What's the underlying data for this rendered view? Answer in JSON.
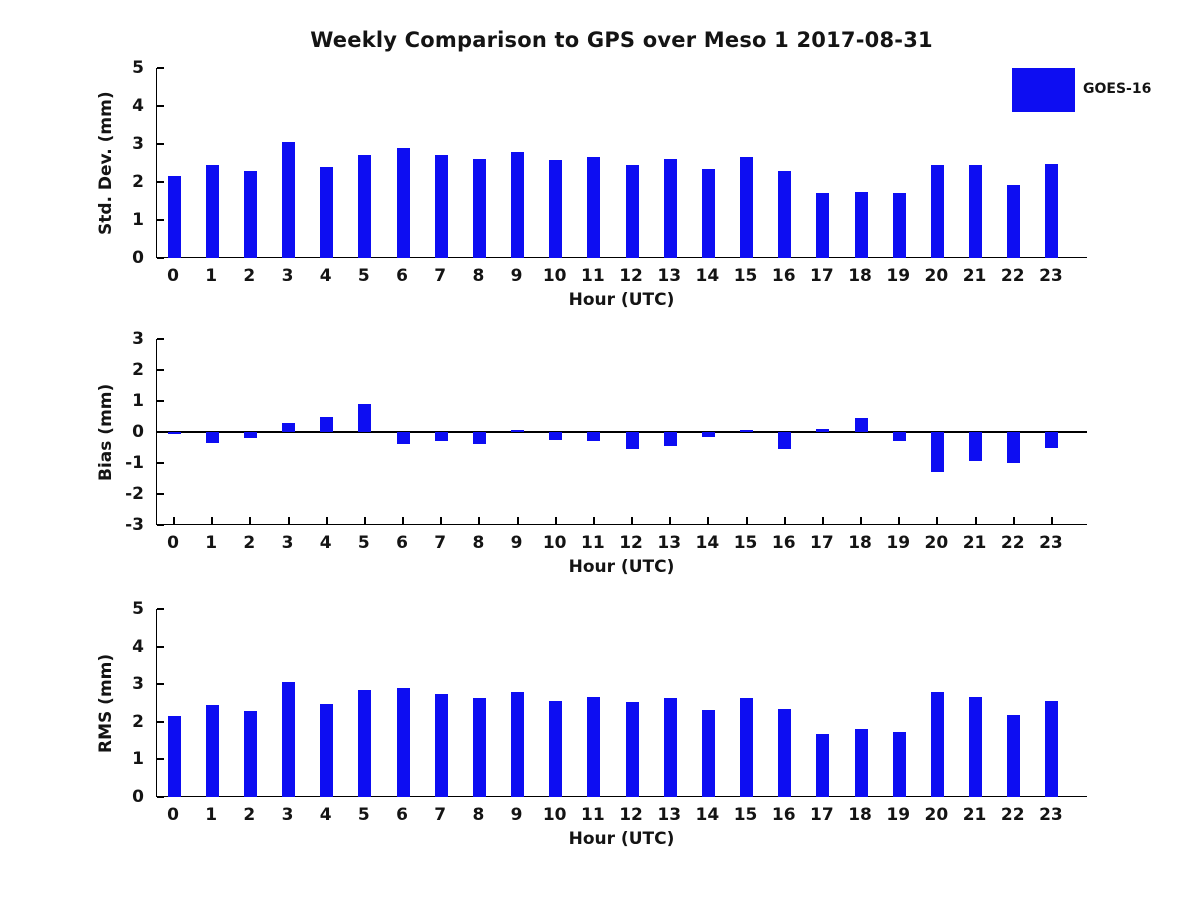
{
  "title": "Weekly Comparison to GPS over Meso 1 2017-08-31",
  "legend": {
    "label": "GOES-16",
    "color": "#0d0df2",
    "position": "top-right"
  },
  "colors": {
    "bar": "#0d0df2",
    "axis": "#000000",
    "text": "#141414",
    "background": "#ffffff"
  },
  "chart_data": [
    {
      "type": "bar",
      "series_name": "GOES-16",
      "ylabel": "Std. Dev. (mm)",
      "xlabel": "Hour (UTC)",
      "categories": [
        "0",
        "1",
        "2",
        "3",
        "4",
        "5",
        "6",
        "7",
        "8",
        "9",
        "10",
        "11",
        "12",
        "13",
        "14",
        "15",
        "16",
        "17",
        "18",
        "19",
        "20",
        "21",
        "22",
        "23"
      ],
      "values": [
        2.15,
        2.45,
        2.3,
        3.05,
        2.4,
        2.7,
        2.9,
        2.7,
        2.6,
        2.8,
        2.57,
        2.65,
        2.45,
        2.6,
        2.33,
        2.65,
        2.28,
        1.7,
        1.74,
        1.71,
        2.45,
        2.46,
        1.93,
        2.48
      ],
      "ylim": [
        0,
        5
      ],
      "yticks": [
        0,
        1,
        2,
        3,
        4,
        5
      ],
      "grid": false,
      "zero_line": false,
      "x_tick_marks": false
    },
    {
      "type": "bar",
      "series_name": "GOES-16",
      "ylabel": "Bias (mm)",
      "xlabel": "Hour (UTC)",
      "categories": [
        "0",
        "1",
        "2",
        "3",
        "4",
        "5",
        "6",
        "7",
        "8",
        "9",
        "10",
        "11",
        "12",
        "13",
        "14",
        "15",
        "16",
        "17",
        "18",
        "19",
        "20",
        "21",
        "22",
        "23"
      ],
      "values": [
        -0.05,
        -0.35,
        -0.2,
        0.3,
        0.5,
        0.9,
        -0.4,
        -0.3,
        -0.4,
        0.07,
        -0.25,
        -0.3,
        -0.55,
        -0.45,
        -0.15,
        0.05,
        -0.55,
        0.1,
        0.45,
        -0.3,
        -1.3,
        -0.95,
        -1.0,
        -0.5
      ],
      "ylim": [
        -3,
        3
      ],
      "yticks": [
        3,
        2,
        1,
        0,
        -1,
        -2,
        -3
      ],
      "grid": false,
      "zero_line": true,
      "x_tick_marks": true
    },
    {
      "type": "bar",
      "series_name": "GOES-16",
      "ylabel": "RMS (mm)",
      "xlabel": "Hour (UTC)",
      "categories": [
        "0",
        "1",
        "2",
        "3",
        "4",
        "5",
        "6",
        "7",
        "8",
        "9",
        "10",
        "11",
        "12",
        "13",
        "14",
        "15",
        "16",
        "17",
        "18",
        "19",
        "20",
        "21",
        "22",
        "23"
      ],
      "values": [
        2.15,
        2.45,
        2.3,
        3.05,
        2.48,
        2.85,
        2.9,
        2.75,
        2.63,
        2.8,
        2.56,
        2.67,
        2.53,
        2.64,
        2.32,
        2.64,
        2.34,
        1.68,
        1.81,
        1.73,
        2.8,
        2.65,
        2.18,
        2.55
      ],
      "ylim": [
        0,
        5
      ],
      "yticks": [
        0,
        1,
        2,
        3,
        4,
        5
      ],
      "grid": false,
      "zero_line": false,
      "x_tick_marks": false
    }
  ]
}
